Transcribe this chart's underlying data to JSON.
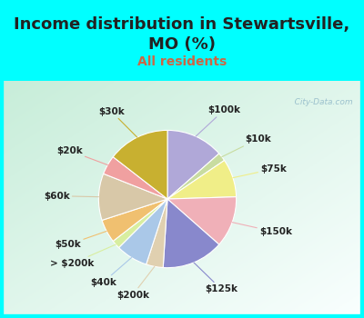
{
  "title": "Income distribution in Stewartsville,\nMO (%)",
  "subtitle": "All residents",
  "title_color": "#222222",
  "subtitle_color": "#cc6644",
  "bg_top": "#00FFFF",
  "bg_chart_left": "#c8e8d8",
  "bg_chart_right": "#e8f8f0",
  "slices": [
    {
      "label": "$100k",
      "value": 13.5,
      "color": "#b0a8d8"
    },
    {
      "label": "$10k",
      "value": 2.0,
      "color": "#c8dca0"
    },
    {
      "label": "$75k",
      "value": 9.0,
      "color": "#f0ee88"
    },
    {
      "label": "$150k",
      "value": 12.0,
      "color": "#f0b0b8"
    },
    {
      "label": "$125k",
      "value": 14.5,
      "color": "#8888cc"
    },
    {
      "label": "$200k",
      "value": 4.0,
      "color": "#e0d0b0"
    },
    {
      "label": "$40k",
      "value": 7.5,
      "color": "#aac8e8"
    },
    {
      "label": "> $200k",
      "value": 2.0,
      "color": "#d8eea0"
    },
    {
      "label": "$50k",
      "value": 5.5,
      "color": "#f0c070"
    },
    {
      "label": "$60k",
      "value": 11.0,
      "color": "#d8c8a8"
    },
    {
      "label": "$20k",
      "value": 4.5,
      "color": "#f0a0a0"
    },
    {
      "label": "$30k",
      "value": 14.5,
      "color": "#c8b030"
    }
  ],
  "watermark": "   City-Data.com",
  "title_fontsize": 13,
  "subtitle_fontsize": 10,
  "label_fontsize": 7.5,
  "label_color": "#222222"
}
